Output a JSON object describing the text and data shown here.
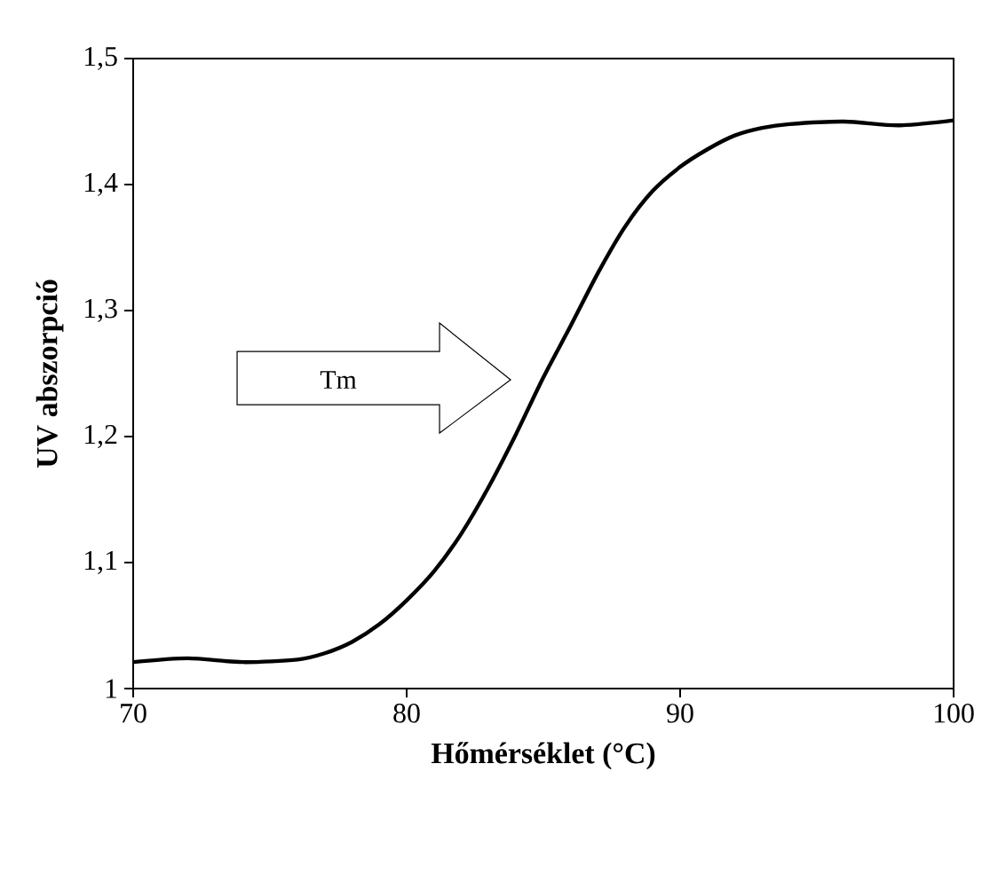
{
  "chart_data": {
    "type": "line",
    "xlabel": "Hőmérséklet (°C)",
    "ylabel": "UV abszorpció",
    "x": [
      70,
      72,
      74,
      76,
      77,
      78,
      79,
      80,
      81,
      82,
      83,
      84,
      85,
      86,
      87,
      88,
      89,
      90,
      91,
      92,
      93,
      94,
      96,
      98,
      100
    ],
    "series": [
      {
        "color": "#000000",
        "values": [
          1.021,
          1.024,
          1.021,
          1.023,
          1.028,
          1.037,
          1.051,
          1.07,
          1.093,
          1.123,
          1.16,
          1.202,
          1.247,
          1.288,
          1.33,
          1.367,
          1.395,
          1.414,
          1.428,
          1.439,
          1.445,
          1.448,
          1.45,
          1.447,
          1.451
        ]
      }
    ],
    "xlim": [
      70,
      100
    ],
    "xticks": [
      70,
      80,
      90,
      100
    ],
    "ylim": [
      1,
      1.5
    ],
    "yticks": [
      1,
      {
        "value": 1.1,
        "label": "1,1"
      },
      {
        "value": 1.2,
        "label": "1,2"
      },
      {
        "value": 1.3,
        "label": "1,3"
      },
      {
        "value": 1.4,
        "label": "1,4"
      },
      {
        "value": 1.5,
        "label": "1,5"
      }
    ],
    "annotations": [
      "Tm"
    ]
  }
}
